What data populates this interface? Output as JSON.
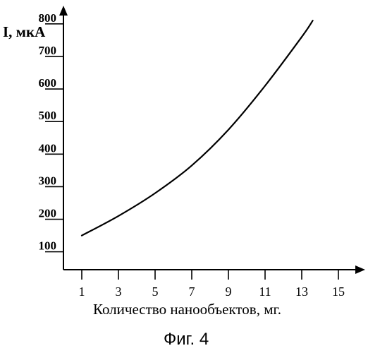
{
  "chart_data": {
    "type": "line",
    "ylabel": "I, мкА",
    "xlabel": "Количество нанообъектов, мг.",
    "caption": "Фиг. 4",
    "x_ticks": [
      "1",
      "3",
      "5",
      "7",
      "9",
      "11",
      "13",
      "15"
    ],
    "y_ticks": [
      "100",
      "200",
      "300",
      "400",
      "500",
      "600",
      "700",
      "800"
    ],
    "xlim": [
      0,
      16
    ],
    "ylim": [
      45,
      830
    ],
    "grid": false,
    "series": [
      {
        "x": [
          1,
          3,
          5,
          7,
          9,
          11,
          13,
          13.6
        ],
        "y": [
          150,
          210,
          280,
          365,
          475,
          610,
          760,
          810
        ]
      }
    ]
  }
}
